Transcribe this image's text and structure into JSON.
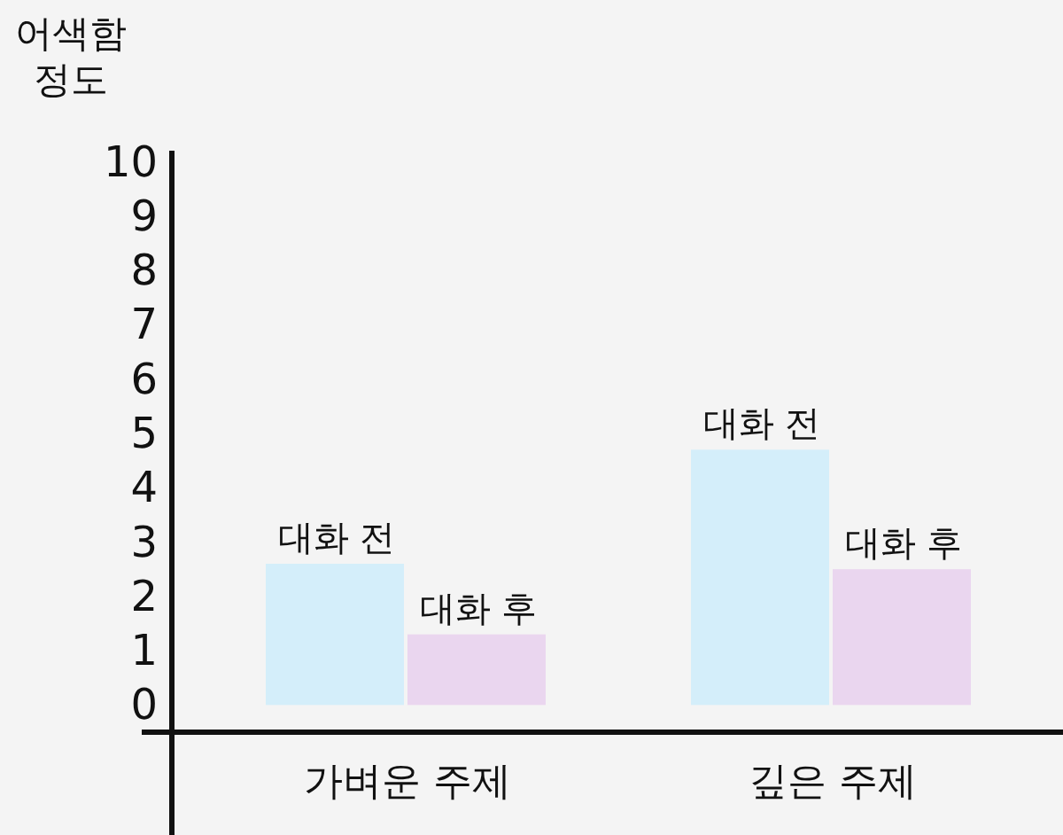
{
  "chart_data": {
    "type": "bar",
    "ylabel": "어색함\n정도",
    "categories": [
      "가벼운 주제",
      "깊은 주제"
    ],
    "series": [
      {
        "name": "대화 전",
        "color": "#d4eefa",
        "values": [
          2.6,
          4.7
        ]
      },
      {
        "name": "대화 후",
        "color": "#ead6ef",
        "values": [
          1.3,
          2.5
        ]
      }
    ],
    "ylim": [
      -0.5,
      10.4
    ],
    "yticks": [
      0,
      1,
      2,
      3,
      4,
      5,
      6,
      7,
      8,
      9,
      10
    ],
    "grid": false,
    "legend": false
  }
}
